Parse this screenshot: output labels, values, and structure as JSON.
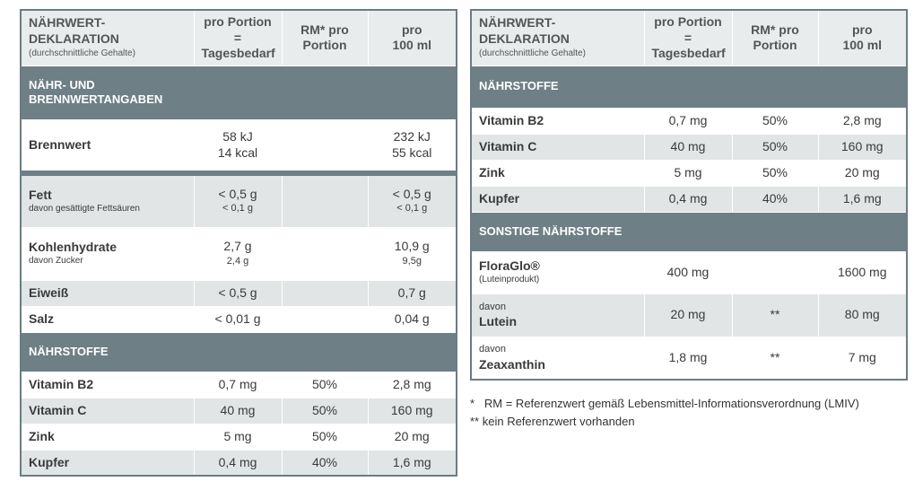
{
  "header": {
    "title": "NÄHRWERT-DEKLARATION",
    "subtitle": "(durchschnittliche Gehalte)",
    "col_portion_1": "pro Portion =",
    "col_portion_2": "Tagesbedarf",
    "col_rm_1": "RM* pro",
    "col_rm_2": "Portion",
    "col_100_1": "pro",
    "col_100_2": "100 ml"
  },
  "left": {
    "section_energy_1": "NÄHR- UND",
    "section_energy_2": "BRENNWERTANGABEN",
    "brennwert": {
      "name": "Brennwert",
      "p1": "58 kJ",
      "p2": "14 kcal",
      "h1": "232 kJ",
      "h2": "55 kcal"
    },
    "fett": {
      "name": "Fett",
      "sub": "davon gesättigte Fettsäuren",
      "p": "< 0,5 g",
      "psub": "< 0,1 g",
      "h": "< 0,5 g",
      "hsub": "< 0,1 g"
    },
    "kh": {
      "name": "Kohlenhydrate",
      "sub": "davon Zucker",
      "p": "2,7 g",
      "psub": "2,4 g",
      "h": "10,9 g",
      "hsub": "9,5g"
    },
    "eiweiss": {
      "name": "Eiweiß",
      "p": "< 0,5 g",
      "h": "0,7 g"
    },
    "salz": {
      "name": "Salz",
      "p": "< 0,01 g",
      "h": "0,04 g"
    },
    "section_naehr": "NÄHRSTOFFE",
    "rows": [
      {
        "name": "Vitamin B2",
        "p": "0,7 mg",
        "rm": "50%",
        "h": "2,8 mg"
      },
      {
        "name": "Vitamin C",
        "p": "40 mg",
        "rm": "50%",
        "h": "160 mg"
      },
      {
        "name": "Zink",
        "p": "5 mg",
        "rm": "50%",
        "h": "20 mg"
      },
      {
        "name": "Kupfer",
        "p": "0,4 mg",
        "rm": "40%",
        "h": "1,6 mg"
      }
    ]
  },
  "right": {
    "section_naehr": "NÄHRSTOFFE",
    "rows": [
      {
        "name": "Vitamin B2",
        "p": "0,7 mg",
        "rm": "50%",
        "h": "2,8 mg"
      },
      {
        "name": "Vitamin C",
        "p": "40 mg",
        "rm": "50%",
        "h": "160 mg"
      },
      {
        "name": "Zink",
        "p": "5 mg",
        "rm": "50%",
        "h": "20 mg"
      },
      {
        "name": "Kupfer",
        "p": "0,4 mg",
        "rm": "40%",
        "h": "1,6 mg"
      }
    ],
    "section_sonstige": "SONSTIGE NÄHRSTOFFE",
    "floraglo": {
      "name": "FloraGlo®",
      "sub": "(Luteinprodukt)",
      "p": "400 mg",
      "h": "1600 mg"
    },
    "lutein": {
      "pre": "davon",
      "name": "Lutein",
      "p": "20 mg",
      "rm": "**",
      "h": "80 mg"
    },
    "zeax": {
      "pre": "davon",
      "name": "Zeaxanthin",
      "p": "1,8 mg",
      "rm": "**",
      "h": "7 mg"
    }
  },
  "footnotes": {
    "f1": "*   RM = Referenzwert gemäß Lebensmittel-Informationsverordnung (LMIV)",
    "f2": "** kein Referenzwert vorhanden"
  }
}
